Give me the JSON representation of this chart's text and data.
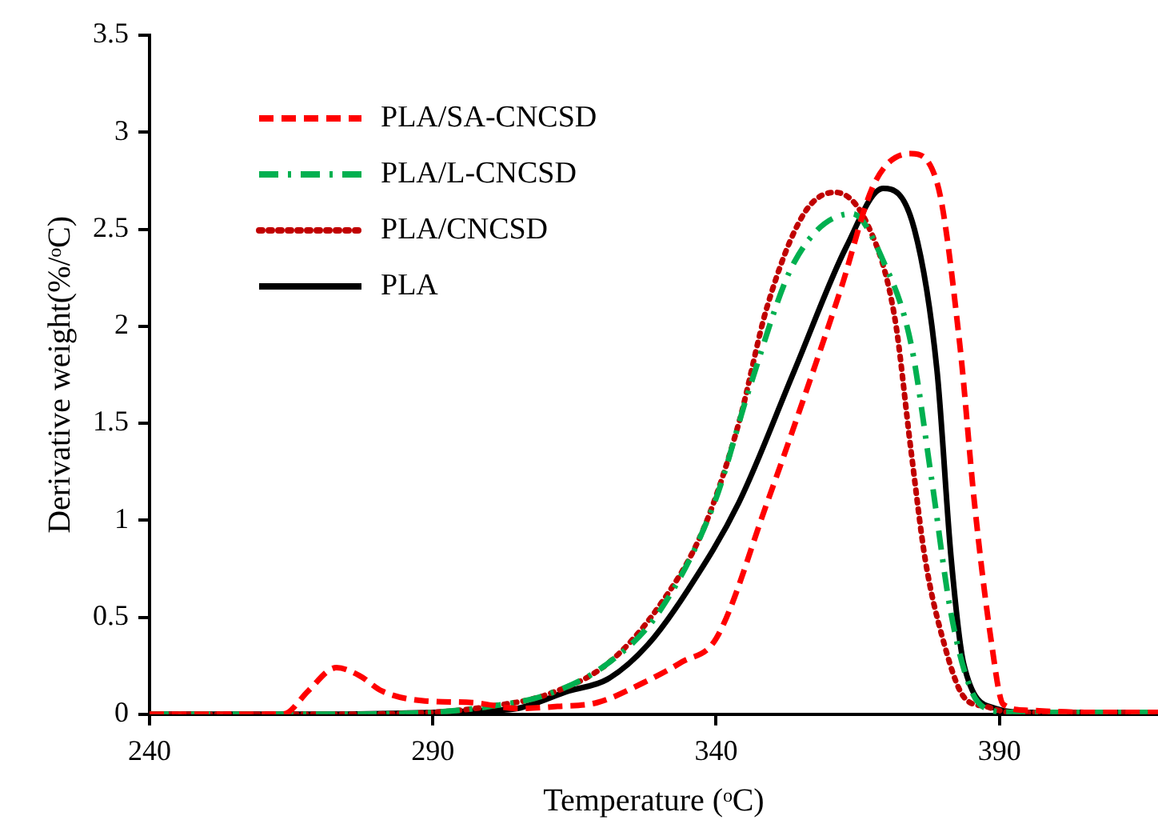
{
  "chart_data": {
    "type": "line",
    "xlabel": "Temperature (ᵒC)",
    "ylabel": "Derivative weight(%/ᵒC)",
    "xlim": [
      240,
      418
    ],
    "ylim": [
      0,
      3.5
    ],
    "xticks": [
      240,
      290,
      340,
      390
    ],
    "yticks": [
      0,
      0.5,
      1,
      1.5,
      2,
      2.5,
      3,
      3.5
    ],
    "grid": false,
    "legend": "top left",
    "marker": "none",
    "series": [
      {
        "name": "PLA/SA-CNCSD",
        "color": "#ff0000",
        "line_style": "dashed",
        "x": [
          240,
          263,
          264.5,
          268,
          273,
          277,
          281,
          288,
          297,
          305,
          312,
          319,
          327,
          334,
          340,
          349,
          355.5,
          362,
          368,
          374.4,
          379,
          383,
          385.6,
          388.5,
          390.7,
          395,
          405,
          418
        ],
        "values": [
          0,
          0,
          0.01,
          0.12,
          0.24,
          0.2,
          0.12,
          0.07,
          0.06,
          0.03,
          0.04,
          0.06,
          0.16,
          0.27,
          0.39,
          1.09,
          1.63,
          2.19,
          2.74,
          2.89,
          2.74,
          1.91,
          1.09,
          0.39,
          0.05,
          0.02,
          0.01,
          0.01
        ]
      },
      {
        "name": "PLA/L-CNCSD",
        "color": "#00b050",
        "line_style": "dashdot",
        "x": [
          240,
          270,
          290,
          300,
          310,
          320.8,
          330,
          339.7,
          346,
          353.8,
          364,
          369.6,
          374.4,
          378,
          381.4,
          384.8,
          387.6,
          392,
          405,
          418
        ],
        "values": [
          0,
          0,
          0.01,
          0.04,
          0.1,
          0.26,
          0.53,
          1.09,
          1.69,
          2.33,
          2.58,
          2.33,
          1.91,
          1.22,
          0.53,
          0.14,
          0.03,
          0.01,
          0.01,
          0.01
        ]
      },
      {
        "name": "PLA/CNCSD",
        "color": "#c00000",
        "line_style": "dotted",
        "x": [
          240,
          270,
          290,
          300,
          310,
          320.8,
          330,
          337.7,
          344,
          349,
          355.5,
          361,
          366.8,
          371.5,
          374.4,
          376.9,
          380,
          383.7,
          387.6,
          392,
          405,
          418
        ],
        "values": [
          0,
          0,
          0.01,
          0.04,
          0.1,
          0.26,
          0.56,
          0.95,
          1.5,
          2.1,
          2.58,
          2.69,
          2.52,
          2.05,
          1.36,
          0.8,
          0.39,
          0.09,
          0.04,
          0.01,
          0.01,
          0.01
        ]
      },
      {
        "name": "PLA",
        "color": "#000000",
        "line_style": "solid",
        "x": [
          240,
          270,
          290,
          300,
          305,
          314,
          320.8,
          328,
          335,
          344,
          353.8,
          363,
          369.5,
          375,
          379,
          381.5,
          383.7,
          389.3,
          395,
          405,
          418
        ],
        "values": [
          0,
          0,
          0.01,
          0.02,
          0.03,
          0.12,
          0.18,
          0.36,
          0.64,
          1.09,
          1.77,
          2.41,
          2.71,
          2.5,
          1.77,
          0.8,
          0.26,
          0.03,
          0.01,
          0.01,
          0.01
        ]
      }
    ]
  }
}
